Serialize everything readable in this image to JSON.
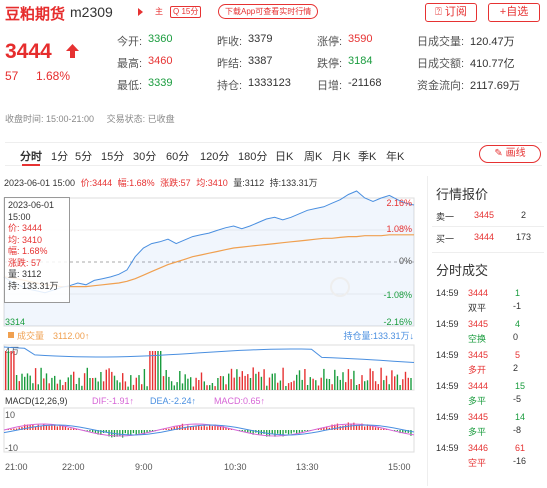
{
  "header": {
    "name": "豆粕期货",
    "code": "m2309",
    "tag_main": "主",
    "tag_period": "Q 15分",
    "app_pill": "下载App可查看实时行情",
    "subscribe": "订阅",
    "add_watch": "+自选"
  },
  "price": {
    "last": "3444",
    "change": "57",
    "change_pct": "1.68%"
  },
  "quote": [
    [
      {
        "label": "今开:",
        "value": "3360",
        "color": "green"
      },
      {
        "label": "昨收:",
        "value": "3379",
        "color": "dark"
      },
      {
        "label": "涨停:",
        "value": "3590",
        "color": "red"
      },
      {
        "label": "日成交量:",
        "value": "120.47万",
        "color": "dark"
      }
    ],
    [
      {
        "label": "最高:",
        "value": "3460",
        "color": "red"
      },
      {
        "label": "昨结:",
        "value": "3387",
        "color": "dark"
      },
      {
        "label": "跌停:",
        "value": "3184",
        "color": "green"
      },
      {
        "label": "日成交额:",
        "value": "410.77亿",
        "color": "dark"
      }
    ],
    [
      {
        "label": "最低:",
        "value": "3339",
        "color": "green"
      },
      {
        "label": "持仓:",
        "value": "1333123",
        "color": "dark"
      },
      {
        "label": "日增:",
        "value": "-21168",
        "color": "dark"
      },
      {
        "label": "资金流向:",
        "value": "2117.69万",
        "color": "dark"
      }
    ]
  ],
  "status": {
    "session": "收盘时间: 15:00-21:00",
    "trade_state": "交易状态: 已收盘"
  },
  "tabs": [
    "分时",
    "1分",
    "5分",
    "15分",
    "30分",
    "60分",
    "120分",
    "180分",
    "日K",
    "周K",
    "月K",
    "季K",
    "年K"
  ],
  "draw_button": "画线",
  "infoline": {
    "date": "2023-06-01 15:00",
    "price": "价:3444",
    "amp": "幅:1.68%",
    "rise": "涨跌:57",
    "avg": "均:3410",
    "vol": "量:3112",
    "hold": "持:133.31万"
  },
  "chart_data": {
    "type": "line",
    "y_left_ticks": [
      "3314"
    ],
    "y_right_ticks": [
      "2.16%",
      "1.08%",
      "0%",
      "-1.08%",
      "-2.16%"
    ],
    "x_ticks": [
      "21:00",
      "22:00",
      "9:00",
      "10:30",
      "13:30",
      "15:00"
    ],
    "price_series": [
      3362,
      3356,
      3352,
      3348,
      3346,
      3344,
      3347,
      3350,
      3352,
      3355,
      3353,
      3358,
      3360,
      3362,
      3365,
      3370,
      3385,
      3395,
      3400,
      3402,
      3405,
      3400,
      3404,
      3408,
      3410,
      3412,
      3415,
      3418,
      3420,
      3417,
      3420,
      3424,
      3428,
      3430,
      3427,
      3430,
      3434,
      3438,
      3440,
      3442,
      3446,
      3450,
      3456,
      3460,
      3452,
      3448,
      3452,
      3455,
      3450,
      3446,
      3444
    ],
    "avg_series": [
      3362,
      3361,
      3359,
      3357,
      3355,
      3353,
      3352,
      3351,
      3351,
      3351,
      3351,
      3352,
      3353,
      3354,
      3355,
      3357,
      3360,
      3364,
      3368,
      3372,
      3376,
      3379,
      3382,
      3385,
      3387,
      3389,
      3391,
      3393,
      3395,
      3396,
      3397,
      3398,
      3399,
      3400,
      3401,
      3402,
      3403,
      3404,
      3405,
      3406,
      3406,
      3407,
      3408,
      3408,
      3409,
      3409,
      3409,
      3410,
      3410,
      3410,
      3410
    ],
    "volume_legend": {
      "label": "成交量",
      "value": "3112.00↑",
      "hold_label": "持仓量:133.31万↓"
    },
    "volume_axis": "4万",
    "macd_legend": {
      "title": "MACD(12,26,9)",
      "dif": "DIF:-1.91↑",
      "dea": "DEA:-2.24↑",
      "macd": "MACD:0.65↑"
    },
    "macd_axis": [
      "10",
      "-10"
    ]
  },
  "tooltip": {
    "date": "2023-06-01",
    "time": "15:00",
    "price": "价: 3444",
    "avg": "均: 3410",
    "amp": "幅: 1.68%",
    "rise": "涨跌: 57",
    "vol": "量: 3112",
    "hold": "持: 133.31万"
  },
  "side": {
    "quote_title": "行情报价",
    "sell1": {
      "label": "卖一",
      "price": "3445",
      "qty": "2"
    },
    "buy1": {
      "label": "买一",
      "price": "3444",
      "qty": "173"
    },
    "trades_title": "分时成交",
    "trades": [
      {
        "time": "14:59",
        "price": "3444",
        "price_color": "red",
        "qty": "1",
        "qty_color": "green",
        "type": "双平",
        "type_color": "dark",
        "oi": "-1"
      },
      {
        "time": "14:59",
        "price": "3445",
        "price_color": "red",
        "qty": "4",
        "qty_color": "green",
        "type": "空换",
        "type_color": "green",
        "oi": "0"
      },
      {
        "time": "14:59",
        "price": "3445",
        "price_color": "red",
        "qty": "5",
        "qty_color": "red",
        "type": "多开",
        "type_color": "red",
        "oi": "2"
      },
      {
        "time": "14:59",
        "price": "3444",
        "price_color": "red",
        "qty": "15",
        "qty_color": "green",
        "type": "多平",
        "type_color": "green",
        "oi": "-5"
      },
      {
        "time": "14:59",
        "price": "3445",
        "price_color": "red",
        "qty": "14",
        "qty_color": "green",
        "type": "多平",
        "type_color": "green",
        "oi": "-8"
      },
      {
        "time": "14:59",
        "price": "3446",
        "price_color": "red",
        "qty": "61",
        "qty_color": "red",
        "type": "空平",
        "type_color": "red",
        "oi": "-16"
      }
    ]
  },
  "colors": {
    "red": "#e63232",
    "green": "#1a9c3e",
    "price_line": "#4a8fe0",
    "avg_line": "#f0a050"
  }
}
